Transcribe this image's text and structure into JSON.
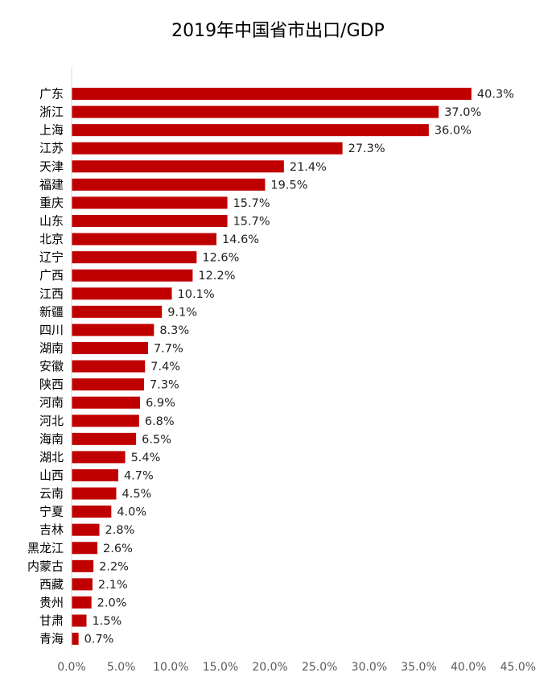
{
  "chart_data": {
    "type": "bar",
    "orientation": "horizontal",
    "title": "2019年中国省市出口/GDP",
    "categories": [
      "广东",
      "浙江",
      "上海",
      "江苏",
      "天津",
      "福建",
      "重庆",
      "山东",
      "北京",
      "辽宁",
      "广西",
      "江西",
      "新疆",
      "四川",
      "湖南",
      "安徽",
      "陕西",
      "河南",
      "河北",
      "海南",
      "湖北",
      "山西",
      "云南",
      "宁夏",
      "吉林",
      "黑龙江",
      "内蒙古",
      "西藏",
      "贵州",
      "甘肃",
      "青海"
    ],
    "values": [
      40.3,
      37.0,
      36.0,
      27.3,
      21.4,
      19.5,
      15.7,
      15.7,
      14.6,
      12.6,
      12.2,
      10.1,
      9.1,
      8.3,
      7.7,
      7.4,
      7.3,
      6.9,
      6.8,
      6.5,
      5.4,
      4.7,
      4.5,
      4.0,
      2.8,
      2.6,
      2.2,
      2.1,
      2.0,
      1.5,
      0.7
    ],
    "value_labels": [
      "40.3%",
      "37.0%",
      "36.0%",
      "27.3%",
      "21.4%",
      "19.5%",
      "15.7%",
      "15.7%",
      "14.6%",
      "12.6%",
      "12.2%",
      "10.1%",
      "9.1%",
      "8.3%",
      "7.7%",
      "7.4%",
      "7.3%",
      "6.9%",
      "6.8%",
      "6.5%",
      "5.4%",
      "4.7%",
      "4.5%",
      "4.0%",
      "2.8%",
      "2.6%",
      "2.2%",
      "2.1%",
      "2.0%",
      "1.5%",
      "0.7%"
    ],
    "xlim": [
      0,
      45
    ],
    "x_ticks": [
      0,
      5,
      10,
      15,
      20,
      25,
      30,
      35,
      40,
      45
    ],
    "x_tick_labels": [
      "0.0%",
      "5.0%",
      "10.0%",
      "15.0%",
      "20.0%",
      "25.0%",
      "30.0%",
      "35.0%",
      "40.0%",
      "45.0%"
    ],
    "bar_color": "#C00000",
    "grid": false,
    "legend": "none"
  }
}
